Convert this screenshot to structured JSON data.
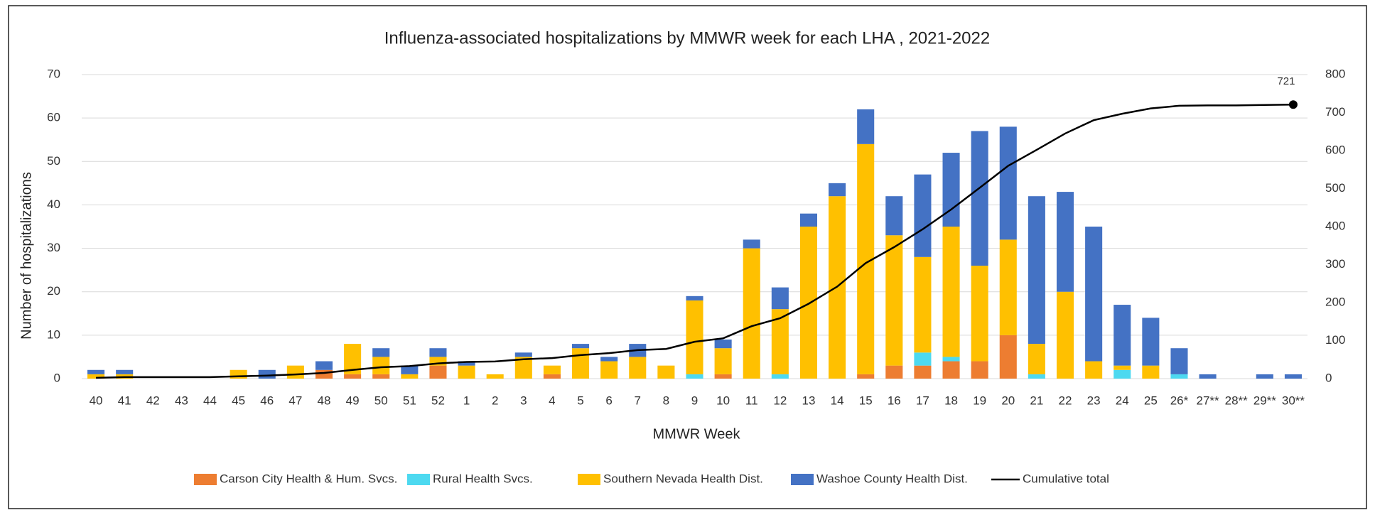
{
  "chart_data": {
    "type": "stacked-bar-line",
    "title": "Influenza-associated hospitalizations by MMWR week for each LHA , 2021-2022",
    "x_label": "MMWR Week",
    "y_label": "Number of hospitalizations",
    "categories": [
      "40",
      "41",
      "42",
      "43",
      "44",
      "45",
      "46",
      "47",
      "48",
      "49",
      "50",
      "51",
      "52",
      "1",
      "2",
      "3",
      "4",
      "5",
      "6",
      "7",
      "8",
      "9",
      "10",
      "11",
      "12",
      "13",
      "14",
      "15",
      "16",
      "17",
      "18",
      "19",
      "20",
      "21",
      "22",
      "23",
      "24",
      "25",
      "26*",
      "27**",
      "28**",
      "29**",
      "30**"
    ],
    "series": [
      {
        "name": "Carson City Health & Hum. Svcs.",
        "color": "#ed7d31",
        "values": [
          0,
          0,
          0,
          0,
          0,
          0,
          0,
          0,
          2,
          1,
          1,
          0,
          3,
          0,
          0,
          0,
          1,
          0,
          0,
          0,
          0,
          0,
          1,
          0,
          0,
          0,
          0,
          1,
          3,
          3,
          4,
          4,
          10,
          0,
          0,
          0,
          0,
          0,
          0,
          0,
          0,
          0,
          0
        ]
      },
      {
        "name": "Rural Health Svcs.",
        "color": "#4dd9f0",
        "values": [
          0,
          0,
          0,
          0,
          0,
          0,
          0,
          0,
          0,
          0,
          0,
          0,
          0,
          0,
          0,
          0,
          0,
          0,
          0,
          0,
          0,
          1,
          0,
          0,
          1,
          0,
          0,
          0,
          0,
          3,
          1,
          0,
          0,
          1,
          0,
          0,
          2,
          0,
          1,
          0,
          0,
          0,
          0
        ]
      },
      {
        "name": "Southern Nevada Health Dist.",
        "color": "#ffc000",
        "values": [
          1,
          1,
          0,
          0,
          0,
          2,
          0,
          3,
          0,
          7,
          4,
          1,
          2,
          3,
          1,
          5,
          2,
          7,
          4,
          5,
          3,
          17,
          6,
          30,
          15,
          35,
          42,
          53,
          30,
          22,
          30,
          22,
          22,
          7,
          20,
          4,
          1,
          3,
          0,
          0,
          0,
          0,
          0
        ]
      },
      {
        "name": "Washoe County Health Dist.",
        "color": "#4472c4",
        "values": [
          1,
          1,
          0,
          0,
          0,
          0,
          2,
          0,
          2,
          0,
          2,
          2,
          2,
          1,
          0,
          1,
          0,
          1,
          1,
          3,
          0,
          1,
          2,
          2,
          5,
          3,
          3,
          8,
          9,
          19,
          17,
          31,
          26,
          34,
          23,
          31,
          14,
          11,
          6,
          1,
          0,
          1,
          1
        ]
      },
      {
        "name": "Cumulative total",
        "color": "#000000",
        "axis": "y2",
        "values": [
          2,
          4,
          4,
          4,
          4,
          6,
          8,
          11,
          15,
          23,
          30,
          33,
          40,
          44,
          45,
          51,
          54,
          62,
          67,
          75,
          78,
          97,
          106,
          138,
          159,
          197,
          242,
          304,
          346,
          393,
          445,
          502,
          560,
          602,
          645,
          680,
          697,
          711,
          718,
          719,
          719,
          720,
          721
        ]
      }
    ],
    "ylim": [
      0,
      70
    ],
    "yticks": [
      0,
      10,
      20,
      30,
      40,
      50,
      60,
      70
    ],
    "y2lim": [
      0,
      800
    ],
    "y2ticks": [
      0,
      100,
      200,
      300,
      400,
      500,
      600,
      700,
      800
    ],
    "grid": true,
    "legend": "bottom"
  }
}
